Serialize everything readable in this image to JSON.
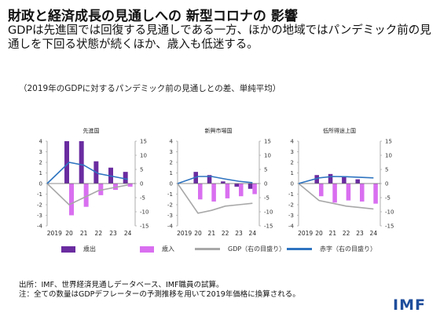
{
  "header": {
    "title": "財政と経済成長の見通しへの 新型コロナの 影響",
    "subtitle": "GDPは先進国では回復する見通しである一方、ほかの地域ではパンデミック前の見通しを下回る状態が続くほか、歳入も低迷する。",
    "note": "（2019年のGDPに対するパンデミック前の見通しとの差、単純平均）"
  },
  "colors": {
    "expenditure": "#6a2ca0",
    "revenue": "#d96ff0",
    "gdp": "#a8a8a8",
    "deficit": "#2e74c0"
  },
  "legend": {
    "expenditure": "歳出",
    "revenue": "歳入",
    "gdp": "GDP（右の目盛り）",
    "deficit": "赤字（右の目盛り）"
  },
  "chart_data": [
    {
      "type": "bar",
      "title": "先進国",
      "categories": [
        "2019",
        "20",
        "21",
        "22",
        "23",
        "24"
      ],
      "series": [
        {
          "name": "歳出",
          "values": [
            0,
            4.0,
            4.0,
            2.1,
            1.5,
            1.1
          ]
        },
        {
          "name": "歳入",
          "values": [
            0,
            -3.0,
            -2.2,
            -1.1,
            -0.6,
            -0.3
          ]
        },
        {
          "name": "GDP（右の目盛り）",
          "values": [
            0,
            -7.5,
            -5.0,
            -2.5,
            -1.5,
            -0.5
          ]
        },
        {
          "name": "赤字（右の目盛り）",
          "values": [
            0,
            7.5,
            6.5,
            3.5,
            2.5,
            1.5
          ]
        }
      ],
      "ylim": [
        -4,
        4
      ],
      "yticks": [
        "4",
        "3",
        "2",
        "1",
        "0",
        "-1",
        "-2",
        "-3",
        "-4"
      ],
      "y2lim": [
        -15,
        15
      ],
      "y2ticks": [
        "15",
        "10",
        "5",
        "0",
        "-5",
        "-10",
        "-15"
      ]
    },
    {
      "type": "bar",
      "title": "新興市場国",
      "categories": [
        "2019",
        "20",
        "21",
        "22",
        "23",
        "24"
      ],
      "series": [
        {
          "name": "歳出",
          "values": [
            0,
            1.1,
            0.8,
            0.2,
            -0.3,
            -0.5
          ]
        },
        {
          "name": "歳入",
          "values": [
            0,
            -1.5,
            -1.7,
            -1.4,
            -1.2,
            -1.0
          ]
        },
        {
          "name": "GDP（右の目盛り）",
          "values": [
            0,
            -10.5,
            -9.5,
            -8.0,
            -7.5,
            -7.0
          ]
        },
        {
          "name": "赤字（右の目盛り）",
          "values": [
            0,
            2.5,
            2.5,
            1.6,
            0.8,
            0.3
          ]
        }
      ],
      "ylim": [
        -4,
        4
      ],
      "yticks": [
        "4",
        "3",
        "2",
        "1",
        "0",
        "-1",
        "-2",
        "-3",
        "-4"
      ],
      "y2lim": [
        -15,
        15
      ],
      "y2ticks": [
        "15",
        "10",
        "5",
        "0",
        "-5",
        "-10",
        "-15"
      ]
    },
    {
      "type": "bar",
      "title": "低所得途上国",
      "categories": [
        "2019",
        "20",
        "21",
        "22",
        "23",
        "24"
      ],
      "series": [
        {
          "name": "歳出",
          "values": [
            0,
            0.8,
            0.9,
            0.6,
            0.4,
            0.0
          ]
        },
        {
          "name": "歳入",
          "values": [
            0,
            -1.2,
            -1.8,
            -1.6,
            -1.7,
            -1.9
          ]
        },
        {
          "name": "GDP（右の目盛り）",
          "values": [
            0,
            -6.0,
            -7.0,
            -8.0,
            -8.5,
            -9.0
          ]
        },
        {
          "name": "赤字（右の目盛り）",
          "values": [
            0,
            2.0,
            2.5,
            2.4,
            2.2,
            2.0
          ]
        }
      ],
      "ylim": [
        -4,
        4
      ],
      "yticks": [
        "4",
        "3",
        "2",
        "1",
        "0",
        "-1",
        "-2",
        "-3",
        "-4"
      ],
      "y2lim": [
        -15,
        15
      ],
      "y2ticks": [
        "15",
        "10",
        "5",
        "0",
        "-5",
        "-10",
        "-15"
      ]
    }
  ],
  "footer": {
    "source": "出所：IMF、世界経済見通しデータベース、IMF職員の試算。",
    "note": "注：全ての数量はGDPデフレーターの予測推移を用いて2019年価格に換算される。",
    "logo": "IMF"
  }
}
